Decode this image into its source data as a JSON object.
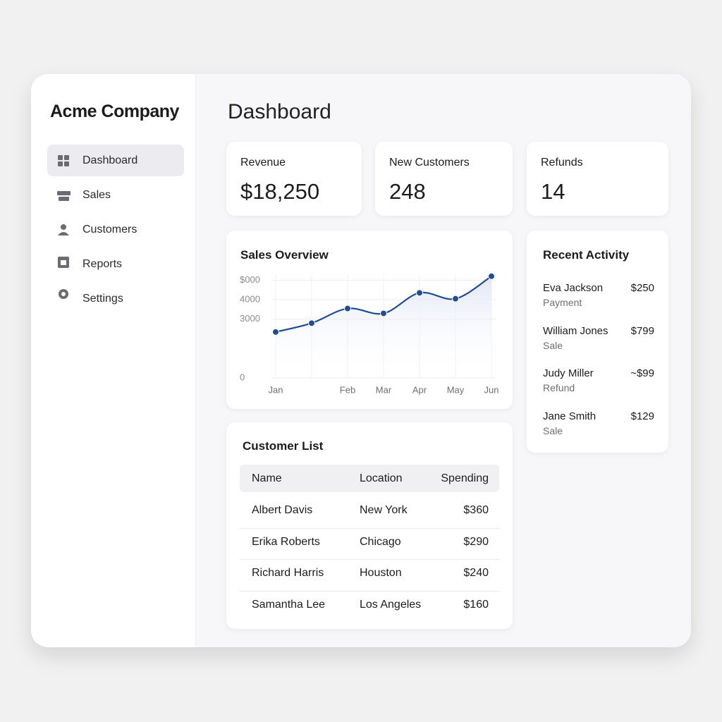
{
  "sidebar": {
    "company": "Acme Company",
    "nav": [
      "Dashboard",
      "Sales",
      "Customers",
      "Reports",
      "Settings"
    ]
  },
  "header": {
    "title": "Dashboard"
  },
  "stats": [
    {
      "label": "Revenue",
      "value": "$18,250"
    },
    {
      "label": "New Customers",
      "value": "248"
    },
    {
      "label": "Refunds",
      "value": "14"
    }
  ],
  "chart_data": {
    "type": "line",
    "title": "Sales Overview",
    "categories": [
      "Jan",
      null,
      "Feb",
      "Mar",
      "Apr",
      "May",
      "Jun"
    ],
    "series": [
      {
        "name": "Sales",
        "color": "#1f4e96",
        "values": [
          2350,
          2800,
          3550,
          3300,
          4350,
          4050,
          5200
        ]
      }
    ],
    "ylim": [
      0,
      5300
    ],
    "yticks": [
      0,
      3000,
      4000,
      {
        "value": 5000,
        "label": "$000"
      }
    ],
    "grid": true
  },
  "customer_list": {
    "title": "Customer List",
    "columns": [
      "Name",
      "Location",
      "Spending"
    ],
    "rows": [
      [
        "Albert Davis",
        "New York",
        "$360"
      ],
      [
        "Erika Roberts",
        "Chicago",
        "$290"
      ],
      [
        "Richard Harris",
        "Houston",
        "$240"
      ],
      [
        "Samantha Lee",
        "Los Angeles",
        "$160"
      ]
    ]
  },
  "recent_activity": {
    "title": "Recent Activity",
    "items": [
      {
        "name": "Eva Jackson",
        "type": "Payment",
        "amount": "$250"
      },
      {
        "name": "William Jones",
        "type": "Sale",
        "amount": "$799"
      },
      {
        "name": "Judy Miller",
        "type": "Refund",
        "amount": "~$99"
      },
      {
        "name": "Jane Smith",
        "type": "Sale",
        "amount": "$129"
      }
    ]
  }
}
